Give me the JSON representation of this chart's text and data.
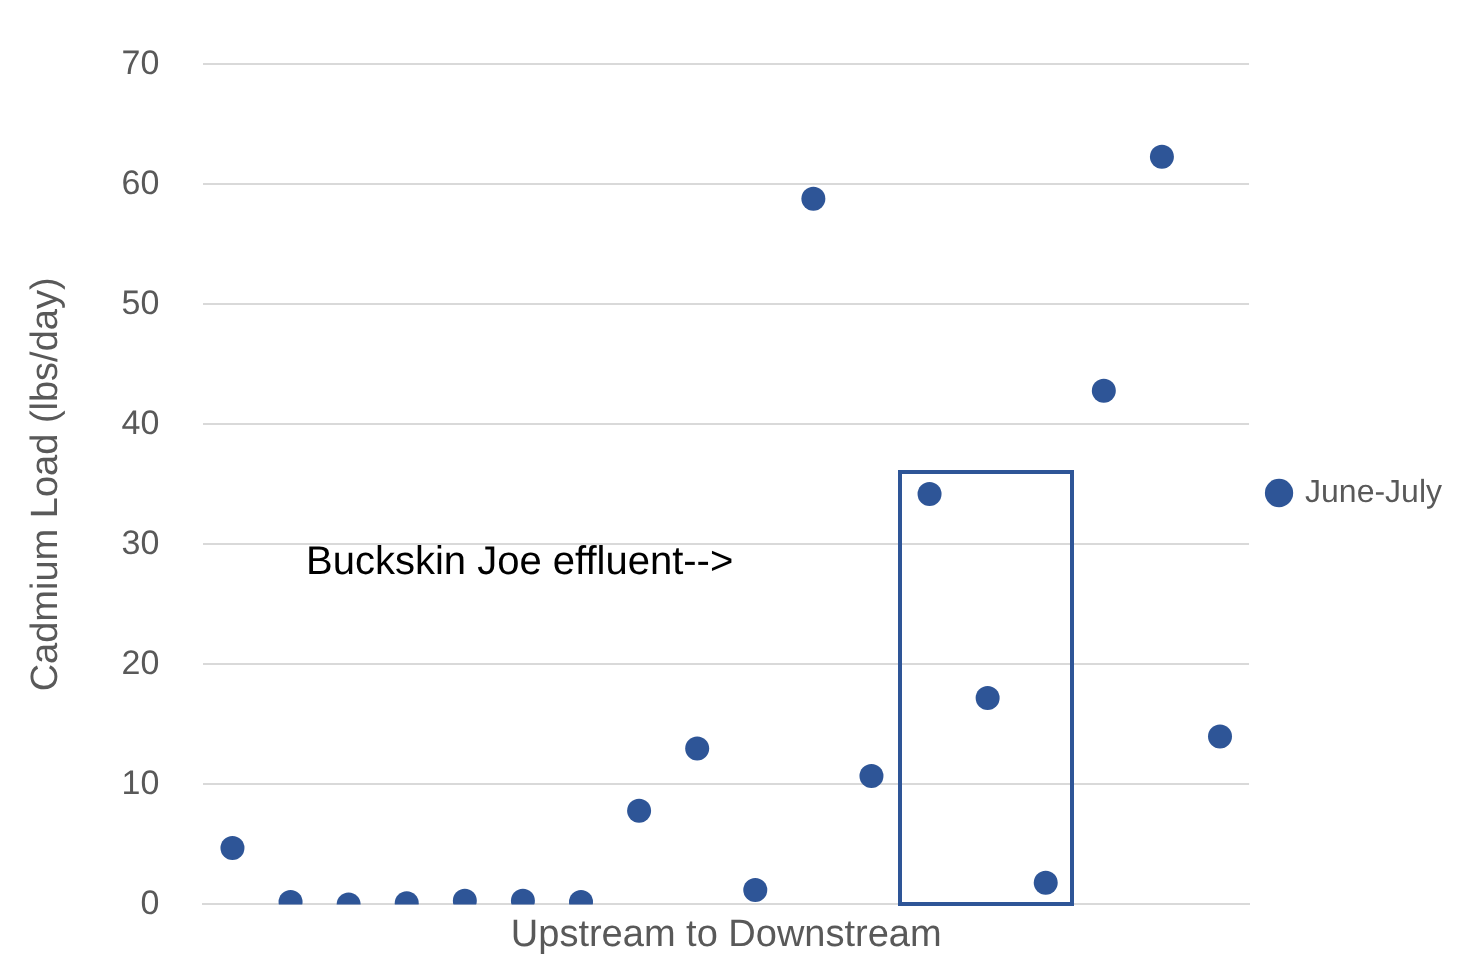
{
  "chart_data": {
    "type": "scatter",
    "xlabel": "Upstream to Downstream",
    "ylabel": "Cadmium Load (lbs/day)",
    "categories": [
      null,
      null,
      null,
      null,
      null,
      null,
      null,
      null,
      null,
      null,
      null,
      null,
      null,
      null,
      null,
      null,
      null,
      null
    ],
    "series": [
      {
        "name": "June-July",
        "color": "#2e5597",
        "values": [
          4.7,
          0.2,
          0,
          0.1,
          0.3,
          0.3,
          0.2,
          7.8,
          13,
          1.2,
          58.8,
          10.7,
          34.2,
          17.2,
          1.8,
          42.8,
          62.3,
          14
        ]
      }
    ],
    "ylim": [
      0,
      70
    ],
    "yticks": [
      0,
      10,
      20,
      30,
      40,
      50,
      60,
      70
    ],
    "grid": "y",
    "legend": "right",
    "marker": "circle",
    "tick_labels": "y",
    "annotations": [
      "Buckskin Joe effluent-->"
    ]
  }
}
